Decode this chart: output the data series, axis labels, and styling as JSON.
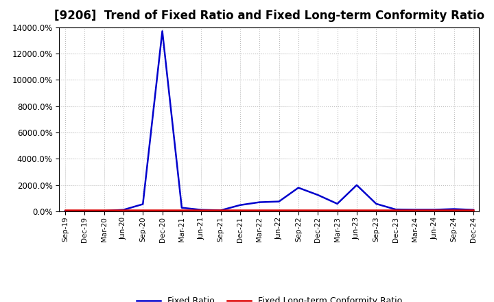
{
  "title": "[9206]  Trend of Fixed Ratio and Fixed Long-term Conformity Ratio",
  "x_labels": [
    "Sep-19",
    "Dec-19",
    "Mar-20",
    "Jun-20",
    "Sep-20",
    "Dec-20",
    "Mar-21",
    "Jun-21",
    "Sep-21",
    "Dec-21",
    "Mar-22",
    "Jun-22",
    "Sep-22",
    "Dec-22",
    "Mar-23",
    "Jun-23",
    "Sep-23",
    "Dec-23",
    "Mar-24",
    "Jun-24",
    "Sep-24",
    "Dec-24"
  ],
  "fixed_ratio": [
    30,
    30,
    35,
    120,
    550,
    13700,
    280,
    120,
    80,
    480,
    700,
    750,
    1800,
    1250,
    580,
    2000,
    580,
    150,
    130,
    130,
    180,
    120
  ],
  "fixed_lt_ratio": [
    80,
    80,
    80,
    80,
    80,
    80,
    80,
    80,
    80,
    80,
    80,
    80,
    80,
    80,
    80,
    80,
    80,
    80,
    80,
    80,
    80,
    80
  ],
  "fixed_ratio_color": "#0000cc",
  "fixed_lt_ratio_color": "#dd0000",
  "background_color": "#ffffff",
  "grid_color": "#bbbbbb",
  "ylim": [
    0,
    14000
  ],
  "yticks": [
    0,
    2000,
    4000,
    6000,
    8000,
    10000,
    12000,
    14000
  ],
  "title_fontsize": 12,
  "legend_labels": [
    "Fixed Ratio",
    "Fixed Long-term Conformity Ratio"
  ]
}
